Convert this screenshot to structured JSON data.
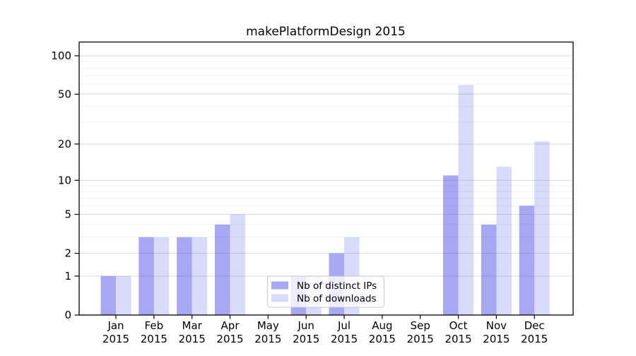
{
  "title": "makePlatformDesign 2015",
  "chart_data": {
    "type": "bar",
    "categories": [
      "Jan",
      "Feb",
      "Mar",
      "Apr",
      "May",
      "Jun",
      "Jul",
      "Aug",
      "Sep",
      "Oct",
      "Nov",
      "Dec"
    ],
    "category_year": "2015",
    "series": [
      {
        "name": "Nb of distinct IPs",
        "color": "rgba(80,80,230,0.50)",
        "values": [
          1,
          3,
          3,
          4,
          0,
          1,
          2,
          0,
          0,
          11,
          4,
          6
        ]
      },
      {
        "name": "Nb of downloads",
        "color": "rgba(80,80,230,0.21)",
        "values": [
          1,
          3,
          3,
          5,
          0,
          1,
          3,
          0,
          0,
          59,
          13,
          21
        ]
      }
    ],
    "yscale": "log1p",
    "ylim": [
      0,
      128
    ],
    "y_major_ticks": [
      0,
      1,
      2,
      5,
      10,
      20,
      50,
      100
    ],
    "y_minor_ticks": [
      3,
      4,
      6,
      7,
      8,
      9,
      30,
      40,
      60,
      70,
      80,
      90
    ],
    "grid": true,
    "legend_position": "lower center",
    "xlabel": "",
    "ylabel": ""
  },
  "colors": {
    "background": "#ffffff",
    "spine": "#000000",
    "grid_major": "#d9d9d9",
    "grid_minor": "#efefef",
    "text": "#000000",
    "legend_border": "#c8c8c8",
    "legend_bg": "rgba(255,255,255,0.8)"
  }
}
